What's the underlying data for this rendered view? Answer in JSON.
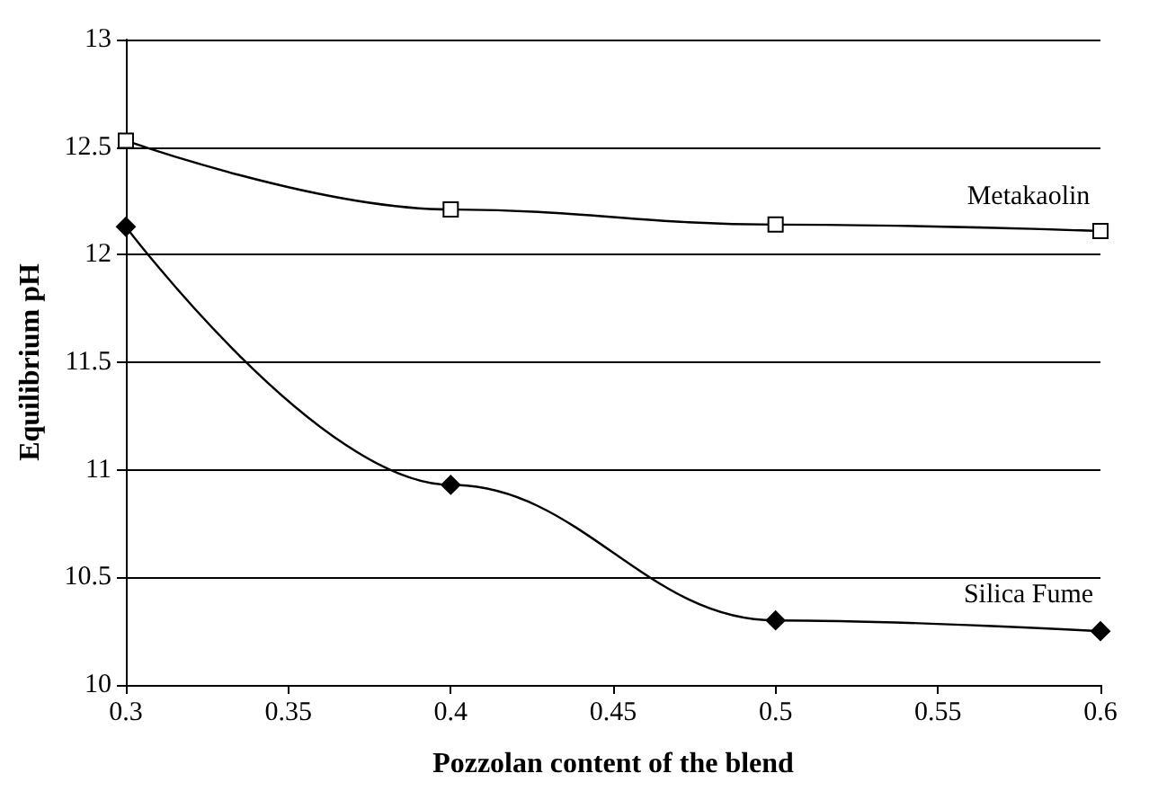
{
  "chart_data": {
    "type": "line",
    "xlabel": "Pozzolan content of the blend",
    "ylabel": "Equilibrium pH",
    "x": [
      0.3,
      0.4,
      0.5,
      0.6
    ],
    "series": [
      {
        "name": "Metakaolin",
        "color": "#000000",
        "marker": "square",
        "values": [
          12.53,
          12.21,
          12.14,
          12.11
        ]
      },
      {
        "name": "Silica Fume",
        "color": "#000000",
        "marker": "diamond",
        "values": [
          12.13,
          10.93,
          10.3,
          10.25
        ]
      }
    ],
    "xlim": [
      0.3,
      0.6
    ],
    "xticks": [
      0.3,
      0.35,
      0.4,
      0.45,
      0.5,
      0.55,
      0.6
    ],
    "ylim": [
      10,
      13
    ],
    "yticks": [
      10,
      10.5,
      11,
      11.5,
      12,
      12.5,
      13
    ],
    "grid": "y",
    "legend": false
  }
}
